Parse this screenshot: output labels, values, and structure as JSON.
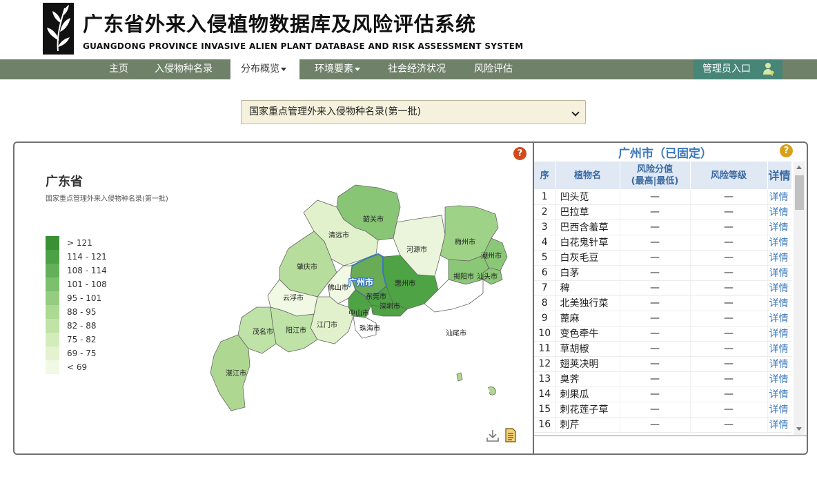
{
  "header": {
    "title_cn": "广东省外来入侵植物数据库及风险评估系统",
    "title_en": "GUANGDONG PROVINCE INVASIVE ALIEN PLANT DATABASE AND RISK ASSESSMENT SYSTEM"
  },
  "nav": {
    "items": [
      {
        "label": "主页"
      },
      {
        "label": "入侵物种名录"
      },
      {
        "label": "分布概览"
      },
      {
        "label": "环境要素"
      },
      {
        "label": "社会经济状况"
      },
      {
        "label": "风险评估"
      }
    ],
    "active": "分布概览",
    "admin_label": "管理员入口"
  },
  "list_select": {
    "value": "国家重点管理外来入侵物种名录(第一批)"
  },
  "map": {
    "title": "广东省",
    "subtitle": "国家重点管理外来入侵物种名录(第一批)",
    "legend": [
      {
        "label": "> 121",
        "color": "#3a9135"
      },
      {
        "label": "114 - 121",
        "color": "#4ca144"
      },
      {
        "label": "108 - 114",
        "color": "#64b05a"
      },
      {
        "label": "101 - 108",
        "color": "#7cbf6c"
      },
      {
        "label": "95 - 101",
        "color": "#95cd80"
      },
      {
        "label": "88 - 95",
        "color": "#acd993"
      },
      {
        "label": "82 - 88",
        "color": "#c1e3a7"
      },
      {
        "label": "75 - 82",
        "color": "#d4ebbb"
      },
      {
        "label": "69 - 75",
        "color": "#e4f2cf"
      },
      {
        "label": "< 69",
        "color": "#f1f8e4"
      }
    ],
    "cities": {
      "shaoguan": "韶关市",
      "qingyuan": "清远市",
      "heyuan": "河源市",
      "meizhou": "梅州市",
      "chaozhou": "潮州市",
      "zhaoqing": "肇庆市",
      "guangzhou": "广州市",
      "huizhou": "惠州市",
      "jieyang": "揭阳市",
      "shantou": "汕头市",
      "foshan": "佛山市",
      "yunfu": "云浮市",
      "dongguan": "东莞市",
      "shenzhen": "深圳市",
      "zhongshan": "中山市",
      "jiangmen": "江门市",
      "yangjiang": "阳江市",
      "maoming": "茂名市",
      "zhuhai": "珠海市",
      "shanwei": "汕尾市",
      "zhanjiang": "湛江市"
    },
    "icons": [
      "download-icon",
      "data-view-icon"
    ]
  },
  "species_table": {
    "city_title": "广州市（已固定）",
    "headers": {
      "index": "序",
      "name": "植物名",
      "score": "风险分值\n(最高|最低)",
      "level": "风险等级",
      "detail": "详情"
    },
    "rows": [
      {
        "no": "1",
        "name": "凹头苋",
        "score": "—",
        "level": "—",
        "detail": "详情"
      },
      {
        "no": "2",
        "name": "巴拉草",
        "score": "—",
        "level": "—",
        "detail": "详情"
      },
      {
        "no": "3",
        "name": "巴西含羞草",
        "score": "—",
        "level": "—",
        "detail": "详情"
      },
      {
        "no": "4",
        "name": "白花鬼针草",
        "score": "—",
        "level": "—",
        "detail": "详情"
      },
      {
        "no": "5",
        "name": "白灰毛豆",
        "score": "—",
        "level": "—",
        "detail": "详情"
      },
      {
        "no": "6",
        "name": "白茅",
        "score": "—",
        "level": "—",
        "detail": "详情"
      },
      {
        "no": "7",
        "name": "稗",
        "score": "—",
        "level": "—",
        "detail": "详情"
      },
      {
        "no": "8",
        "name": "北美独行菜",
        "score": "—",
        "level": "—",
        "detail": "详情"
      },
      {
        "no": "9",
        "name": "蓖麻",
        "score": "—",
        "level": "—",
        "detail": "详情"
      },
      {
        "no": "10",
        "name": "变色牵牛",
        "score": "—",
        "level": "—",
        "detail": "详情"
      },
      {
        "no": "11",
        "name": "草胡椒",
        "score": "—",
        "level": "—",
        "detail": "详情"
      },
      {
        "no": "12",
        "name": "翅荚决明",
        "score": "—",
        "level": "—",
        "detail": "详情"
      },
      {
        "no": "13",
        "name": "臭荠",
        "score": "—",
        "level": "—",
        "detail": "详情"
      },
      {
        "no": "14",
        "name": "刺果瓜",
        "score": "—",
        "level": "—",
        "detail": "详情"
      },
      {
        "no": "15",
        "name": "刺花莲子草",
        "score": "—",
        "level": "—",
        "detail": "详情"
      },
      {
        "no": "16",
        "name": "刺芹",
        "score": "—",
        "level": "—",
        "detail": "详情"
      }
    ]
  }
}
